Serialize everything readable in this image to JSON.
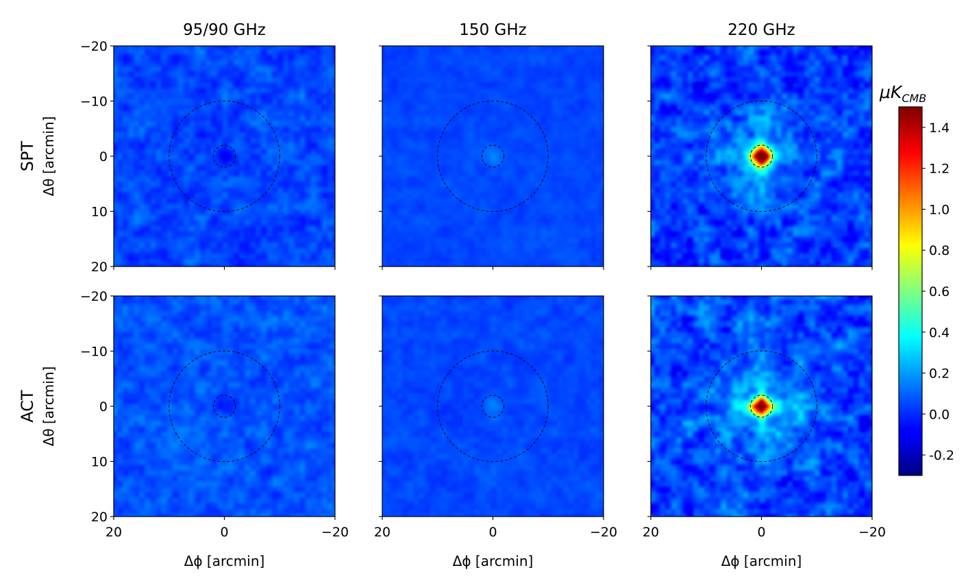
{
  "chart_data": {
    "type": "heatmap",
    "colormap": "jet",
    "columns": [
      "95/90 GHz",
      "150 GHz",
      "220 GHz"
    ],
    "rows": [
      "SPT",
      "ACT"
    ],
    "xlabel": "Δϕ [arcmin]",
    "ylabel": "Δθ [arcmin]",
    "xlim": [
      20,
      -20
    ],
    "ylim": [
      -20,
      20
    ],
    "x_ticks": [
      20,
      0,
      -20
    ],
    "x_tick_labels": [
      "20",
      "0",
      "−20"
    ],
    "y_ticks": [
      -20,
      -10,
      0,
      10,
      20
    ],
    "y_tick_labels": [
      "−20",
      "−10",
      "0",
      "10",
      "20"
    ],
    "circles": [
      {
        "radius": 2,
        "style": "dashed",
        "color": "#000000"
      },
      {
        "radius": 10,
        "style": "dashed",
        "color": "#000000"
      }
    ],
    "colorbar": {
      "label": "μK",
      "label_subscript": "CMB",
      "range": [
        -0.3,
        1.5
      ],
      "ticks": [
        -0.2,
        0.0,
        0.2,
        0.4,
        0.6,
        0.8,
        1.0,
        1.2,
        1.4
      ],
      "tick_labels": [
        "-0.2",
        "0.0",
        "0.2",
        "0.4",
        "0.6",
        "0.8",
        "1.0",
        "1.2",
        "1.4"
      ]
    },
    "panels": [
      {
        "row": "SPT",
        "band": "95/90 GHz",
        "center_peak": -0.05,
        "background": 0.05,
        "noise": 0.1
      },
      {
        "row": "SPT",
        "band": "150 GHz",
        "center_peak": 0.15,
        "background": 0.05,
        "noise": 0.04
      },
      {
        "row": "SPT",
        "band": "220 GHz",
        "center_peak": 1.5,
        "background": 0.03,
        "noise": 0.16
      },
      {
        "row": "ACT",
        "band": "95/90 GHz",
        "center_peak": -0.05,
        "background": 0.07,
        "noise": 0.09
      },
      {
        "row": "ACT",
        "band": "150 GHz",
        "center_peak": 0.15,
        "background": 0.05,
        "noise": 0.05
      },
      {
        "row": "ACT",
        "band": "220 GHz",
        "center_peak": 1.5,
        "background": 0.05,
        "noise": 0.17
      }
    ]
  }
}
